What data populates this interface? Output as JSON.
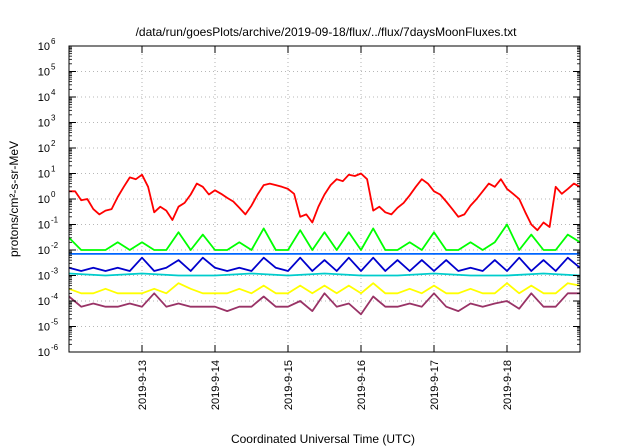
{
  "chart_data": {
    "type": "line",
    "title": "/data/run/goesPlots/archive/2019-09-18/flux/../flux/7daysMoonFluxes.txt",
    "xlabel": "Coordinated Universal Time (UTC)",
    "ylabel": "protons/cm²-s-sr-MeV",
    "yscale": "log",
    "ylim": [
      1e-06,
      1000000.0
    ],
    "xlim": [
      "2019-09-12T00:00",
      "2019-09-19T00:00"
    ],
    "grid": true,
    "legend": "none",
    "y_tick_exponents": [
      -6,
      -5,
      -4,
      -3,
      -2,
      -1,
      0,
      1,
      2,
      3,
      4,
      5,
      6
    ],
    "x_ticks": [
      {
        "label": "2019-9-13",
        "x": "2019-09-13T00:00"
      },
      {
        "label": "2019-9-14",
        "x": "2019-09-14T00:00"
      },
      {
        "label": "2019-9-15",
        "x": "2019-09-15T00:00"
      },
      {
        "label": "2019-9-16",
        "x": "2019-09-16T00:00"
      },
      {
        "label": "2019-9-17",
        "x": "2019-09-17T00:00"
      },
      {
        "label": "2019-9-18",
        "x": "2019-09-18T00:00"
      }
    ],
    "series": [
      {
        "color": "#ff0000",
        "x": [
          "2019-09-12T00:00",
          "2019-09-12T02:00",
          "2019-09-12T04:00",
          "2019-09-12T06:00",
          "2019-09-12T08:00",
          "2019-09-12T10:00",
          "2019-09-12T12:00",
          "2019-09-12T14:00",
          "2019-09-12T16:00",
          "2019-09-12T18:00",
          "2019-09-12T20:00",
          "2019-09-12T22:00",
          "2019-09-13T00:00",
          "2019-09-13T02:00",
          "2019-09-13T04:00",
          "2019-09-13T06:00",
          "2019-09-13T08:00",
          "2019-09-13T10:00",
          "2019-09-13T12:00",
          "2019-09-13T14:00",
          "2019-09-13T16:00",
          "2019-09-13T18:00",
          "2019-09-13T20:00",
          "2019-09-13T22:00",
          "2019-09-14T00:00",
          "2019-09-14T02:00",
          "2019-09-14T04:00",
          "2019-09-14T06:00",
          "2019-09-14T08:00",
          "2019-09-14T10:00",
          "2019-09-14T12:00",
          "2019-09-14T14:00",
          "2019-09-14T16:00",
          "2019-09-14T18:00",
          "2019-09-14T20:00",
          "2019-09-14T22:00",
          "2019-09-15T00:00",
          "2019-09-15T02:00",
          "2019-09-15T04:00",
          "2019-09-15T06:00",
          "2019-09-15T08:00",
          "2019-09-15T10:00",
          "2019-09-15T12:00",
          "2019-09-15T14:00",
          "2019-09-15T16:00",
          "2019-09-15T18:00",
          "2019-09-15T20:00",
          "2019-09-15T22:00",
          "2019-09-16T00:00",
          "2019-09-16T02:00",
          "2019-09-16T04:00",
          "2019-09-16T06:00",
          "2019-09-16T08:00",
          "2019-09-16T10:00",
          "2019-09-16T12:00",
          "2019-09-16T14:00",
          "2019-09-16T16:00",
          "2019-09-16T18:00",
          "2019-09-16T20:00",
          "2019-09-16T22:00",
          "2019-09-17T00:00",
          "2019-09-17T02:00",
          "2019-09-17T04:00",
          "2019-09-17T06:00",
          "2019-09-17T08:00",
          "2019-09-17T10:00",
          "2019-09-17T12:00",
          "2019-09-17T14:00",
          "2019-09-17T16:00",
          "2019-09-17T18:00",
          "2019-09-17T20:00",
          "2019-09-17T22:00",
          "2019-09-18T00:00",
          "2019-09-18T02:00",
          "2019-09-18T04:00",
          "2019-09-18T06:00",
          "2019-09-18T08:00",
          "2019-09-18T10:00",
          "2019-09-18T12:00",
          "2019-09-18T14:00",
          "2019-09-18T16:00",
          "2019-09-18T18:00",
          "2019-09-18T20:00",
          "2019-09-18T22:00",
          "2019-09-19T00:00"
        ],
        "y": [
          2,
          2,
          0.9,
          1,
          0.4,
          0.25,
          0.35,
          0.4,
          1.2,
          3,
          7,
          6,
          9,
          3,
          0.3,
          0.5,
          0.35,
          0.15,
          0.5,
          0.7,
          1.5,
          4,
          3,
          1.5,
          2.2,
          1.6,
          1.1,
          0.8,
          0.45,
          0.25,
          0.55,
          1.5,
          3.5,
          4,
          3.5,
          3,
          2.5,
          1.6,
          0.2,
          0.25,
          0.12,
          0.5,
          1.5,
          3.5,
          6,
          5,
          9,
          8,
          10,
          6,
          0.35,
          0.5,
          0.3,
          0.25,
          0.45,
          0.7,
          1.4,
          3,
          6,
          4,
          2,
          1.5,
          0.8,
          0.4,
          0.2,
          0.25,
          0.55,
          1,
          2,
          4,
          3,
          6,
          2.5,
          1.6,
          1,
          0.3,
          0.1,
          0.06,
          0.12,
          0.08,
          3,
          1.6,
          2.5,
          4,
          3
        ]
      },
      {
        "color": "#00ff00",
        "x": [
          "2019-09-12T00:00",
          "2019-09-12T04:00",
          "2019-09-12T08:00",
          "2019-09-12T12:00",
          "2019-09-12T16:00",
          "2019-09-12T20:00",
          "2019-09-13T00:00",
          "2019-09-13T04:00",
          "2019-09-13T08:00",
          "2019-09-13T12:00",
          "2019-09-13T16:00",
          "2019-09-13T20:00",
          "2019-09-14T00:00",
          "2019-09-14T04:00",
          "2019-09-14T08:00",
          "2019-09-14T12:00",
          "2019-09-14T16:00",
          "2019-09-14T20:00",
          "2019-09-15T00:00",
          "2019-09-15T04:00",
          "2019-09-15T08:00",
          "2019-09-15T12:00",
          "2019-09-15T16:00",
          "2019-09-15T20:00",
          "2019-09-16T00:00",
          "2019-09-16T04:00",
          "2019-09-16T08:00",
          "2019-09-16T12:00",
          "2019-09-16T16:00",
          "2019-09-16T20:00",
          "2019-09-17T00:00",
          "2019-09-17T04:00",
          "2019-09-17T08:00",
          "2019-09-17T12:00",
          "2019-09-17T16:00",
          "2019-09-17T20:00",
          "2019-09-18T00:00",
          "2019-09-18T04:00",
          "2019-09-18T08:00",
          "2019-09-18T12:00",
          "2019-09-18T16:00",
          "2019-09-18T20:00",
          "2019-09-19T00:00"
        ],
        "y": [
          0.03,
          0.01,
          0.01,
          0.01,
          0.02,
          0.01,
          0.02,
          0.01,
          0.01,
          0.05,
          0.01,
          0.04,
          0.01,
          0.01,
          0.02,
          0.01,
          0.07,
          0.01,
          0.01,
          0.06,
          0.01,
          0.05,
          0.01,
          0.05,
          0.01,
          0.07,
          0.01,
          0.01,
          0.02,
          0.01,
          0.05,
          0.01,
          0.01,
          0.02,
          0.01,
          0.02,
          0.1,
          0.01,
          0.04,
          0.01,
          0.01,
          0.04,
          0.02
        ]
      },
      {
        "color": "#0066ff",
        "x": [
          "2019-09-12T00:00",
          "2019-09-13T00:00",
          "2019-09-14T00:00",
          "2019-09-15T00:00",
          "2019-09-16T00:00",
          "2019-09-17T00:00",
          "2019-09-18T00:00",
          "2019-09-19T00:00"
        ],
        "y": [
          0.007,
          0.007,
          0.007,
          0.007,
          0.007,
          0.007,
          0.007,
          0.007
        ]
      },
      {
        "color": "#0000cc",
        "x": [
          "2019-09-12T00:00",
          "2019-09-12T04:00",
          "2019-09-12T08:00",
          "2019-09-12T12:00",
          "2019-09-12T16:00",
          "2019-09-12T20:00",
          "2019-09-13T00:00",
          "2019-09-13T04:00",
          "2019-09-13T08:00",
          "2019-09-13T12:00",
          "2019-09-13T16:00",
          "2019-09-13T20:00",
          "2019-09-14T00:00",
          "2019-09-14T04:00",
          "2019-09-14T08:00",
          "2019-09-14T12:00",
          "2019-09-14T16:00",
          "2019-09-14T20:00",
          "2019-09-15T00:00",
          "2019-09-15T04:00",
          "2019-09-15T08:00",
          "2019-09-15T12:00",
          "2019-09-15T16:00",
          "2019-09-15T20:00",
          "2019-09-16T00:00",
          "2019-09-16T04:00",
          "2019-09-16T08:00",
          "2019-09-16T12:00",
          "2019-09-16T16:00",
          "2019-09-16T20:00",
          "2019-09-17T00:00",
          "2019-09-17T04:00",
          "2019-09-17T08:00",
          "2019-09-17T12:00",
          "2019-09-17T16:00",
          "2019-09-17T20:00",
          "2019-09-18T00:00",
          "2019-09-18T04:00",
          "2019-09-18T08:00",
          "2019-09-18T12:00",
          "2019-09-18T16:00",
          "2019-09-18T20:00",
          "2019-09-19T00:00"
        ],
        "y": [
          0.002,
          0.0015,
          0.002,
          0.0015,
          0.002,
          0.0015,
          0.005,
          0.0015,
          0.002,
          0.004,
          0.0015,
          0.005,
          0.002,
          0.0015,
          0.002,
          0.0015,
          0.005,
          0.002,
          0.0015,
          0.005,
          0.0015,
          0.004,
          0.0015,
          0.005,
          0.0015,
          0.005,
          0.0015,
          0.004,
          0.0015,
          0.004,
          0.0015,
          0.004,
          0.0015,
          0.002,
          0.0015,
          0.004,
          0.0015,
          0.005,
          0.0015,
          0.004,
          0.0015,
          0.005,
          0.002
        ]
      },
      {
        "color": "#00cccc",
        "x": [
          "2019-09-12T00:00",
          "2019-09-12T12:00",
          "2019-09-13T00:00",
          "2019-09-13T12:00",
          "2019-09-14T00:00",
          "2019-09-14T12:00",
          "2019-09-15T00:00",
          "2019-09-15T12:00",
          "2019-09-16T00:00",
          "2019-09-16T12:00",
          "2019-09-17T00:00",
          "2019-09-17T12:00",
          "2019-09-18T00:00",
          "2019-09-18T12:00",
          "2019-09-19T00:00"
        ],
        "y": [
          0.0012,
          0.001,
          0.0012,
          0.001,
          0.001,
          0.0012,
          0.001,
          0.0012,
          0.001,
          0.001,
          0.0012,
          0.001,
          0.001,
          0.0012,
          0.001
        ]
      },
      {
        "color": "#ffff00",
        "x": [
          "2019-09-12T00:00",
          "2019-09-12T04:00",
          "2019-09-12T08:00",
          "2019-09-12T12:00",
          "2019-09-12T16:00",
          "2019-09-12T20:00",
          "2019-09-13T00:00",
          "2019-09-13T04:00",
          "2019-09-13T08:00",
          "2019-09-13T12:00",
          "2019-09-13T16:00",
          "2019-09-13T20:00",
          "2019-09-14T00:00",
          "2019-09-14T04:00",
          "2019-09-14T08:00",
          "2019-09-14T12:00",
          "2019-09-14T16:00",
          "2019-09-14T20:00",
          "2019-09-15T00:00",
          "2019-09-15T04:00",
          "2019-09-15T08:00",
          "2019-09-15T12:00",
          "2019-09-15T16:00",
          "2019-09-15T20:00",
          "2019-09-16T00:00",
          "2019-09-16T04:00",
          "2019-09-16T08:00",
          "2019-09-16T12:00",
          "2019-09-16T16:00",
          "2019-09-16T20:00",
          "2019-09-17T00:00",
          "2019-09-17T04:00",
          "2019-09-17T08:00",
          "2019-09-17T12:00",
          "2019-09-17T16:00",
          "2019-09-17T20:00",
          "2019-09-18T00:00",
          "2019-09-18T04:00",
          "2019-09-18T08:00",
          "2019-09-18T12:00",
          "2019-09-18T16:00",
          "2019-09-18T20:00",
          "2019-09-19T00:00"
        ],
        "y": [
          0.0003,
          0.0002,
          0.0002,
          0.0003,
          0.0002,
          0.0002,
          0.0002,
          0.0003,
          0.0002,
          0.0005,
          0.0003,
          0.0002,
          0.0002,
          0.0002,
          0.0003,
          0.0002,
          0.0004,
          0.0002,
          0.0002,
          0.0004,
          0.0002,
          0.0004,
          0.0002,
          0.0004,
          0.0002,
          0.0005,
          0.0002,
          0.0002,
          0.0003,
          0.0002,
          0.0004,
          0.0002,
          0.0002,
          0.0003,
          0.0002,
          0.0002,
          0.0005,
          0.0002,
          0.0004,
          0.0002,
          0.0002,
          0.0005,
          0.0004
        ]
      },
      {
        "color": "#993366",
        "x": [
          "2019-09-12T00:00",
          "2019-09-12T04:00",
          "2019-09-12T08:00",
          "2019-09-12T12:00",
          "2019-09-12T16:00",
          "2019-09-12T20:00",
          "2019-09-13T00:00",
          "2019-09-13T04:00",
          "2019-09-13T08:00",
          "2019-09-13T12:00",
          "2019-09-13T16:00",
          "2019-09-13T20:00",
          "2019-09-14T00:00",
          "2019-09-14T04:00",
          "2019-09-14T08:00",
          "2019-09-14T12:00",
          "2019-09-14T16:00",
          "2019-09-14T20:00",
          "2019-09-15T00:00",
          "2019-09-15T04:00",
          "2019-09-15T08:00",
          "2019-09-15T12:00",
          "2019-09-15T16:00",
          "2019-09-15T20:00",
          "2019-09-16T00:00",
          "2019-09-16T04:00",
          "2019-09-16T08:00",
          "2019-09-16T12:00",
          "2019-09-16T16:00",
          "2019-09-16T20:00",
          "2019-09-17T00:00",
          "2019-09-17T04:00",
          "2019-09-17T08:00",
          "2019-09-17T12:00",
          "2019-09-17T16:00",
          "2019-09-17T20:00",
          "2019-09-18T00:00",
          "2019-09-18T04:00",
          "2019-09-18T08:00",
          "2019-09-18T12:00",
          "2019-09-18T16:00",
          "2019-09-18T20:00",
          "2019-09-19T00:00"
        ],
        "y": [
          0.00015,
          6e-05,
          8e-05,
          6e-05,
          6e-05,
          8e-05,
          6e-05,
          0.0002,
          6e-05,
          8e-05,
          6e-05,
          6e-05,
          6e-05,
          4e-05,
          6e-05,
          6e-05,
          0.00015,
          6e-05,
          6e-05,
          0.0001,
          4e-05,
          0.0002,
          6e-05,
          8e-05,
          3e-05,
          0.00015,
          6e-05,
          6e-05,
          8e-05,
          6e-05,
          0.0002,
          6e-05,
          4e-05,
          8e-05,
          6e-05,
          8e-05,
          0.0001,
          5e-05,
          0.0002,
          6e-05,
          6e-05,
          0.0002,
          0.0002
        ]
      }
    ]
  }
}
